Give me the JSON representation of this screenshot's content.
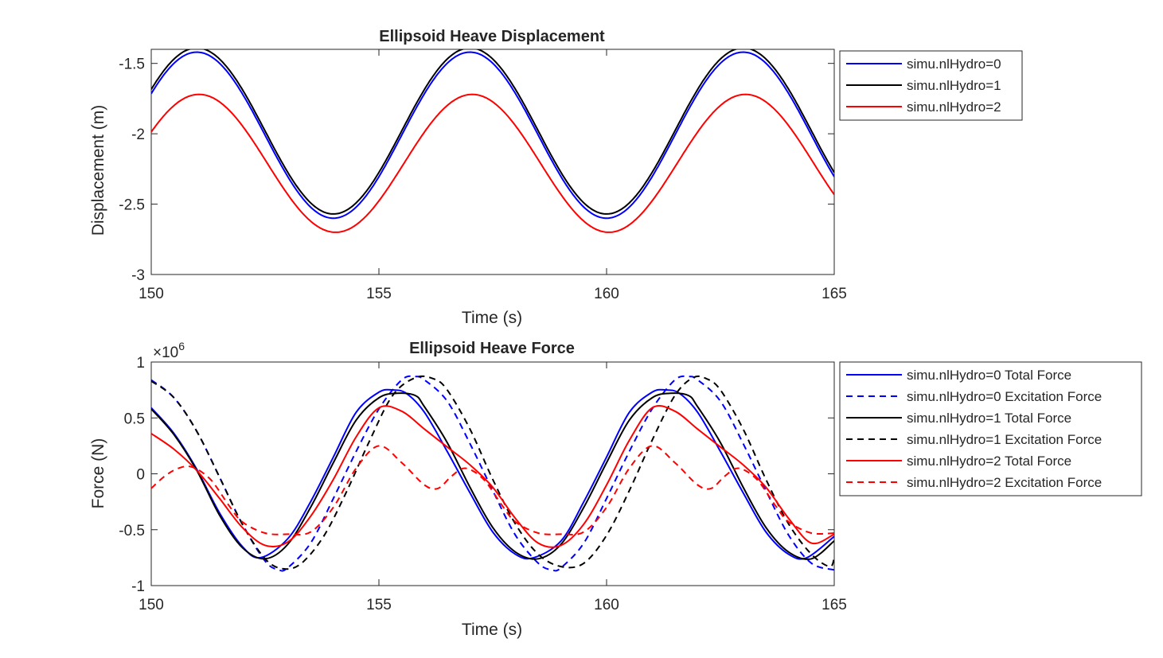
{
  "chart_data": [
    {
      "type": "line",
      "title": "Ellipsoid Heave Displacement",
      "xlabel": "Time (s)",
      "ylabel": "Displacement (m)",
      "xlim": [
        150,
        165
      ],
      "ylim": [
        -3,
        -1.4
      ],
      "xticks": [
        "150",
        "155",
        "160",
        "165"
      ],
      "yticks": [
        "-3",
        "-2.5",
        "-2",
        "-1.5"
      ],
      "grid": false,
      "legend_position": "outside-top-right",
      "series": [
        {
          "name": "simu.nlHydro=0",
          "color": "#0000ff",
          "dash": "solid",
          "period": 6.0,
          "peak_t": 151.0,
          "mean": -2.01,
          "amp": 0.59
        },
        {
          "name": "simu.nlHydro=1",
          "color": "#000000",
          "dash": "solid",
          "period": 6.0,
          "peak_t": 151.0,
          "mean": -1.98,
          "amp": 0.59
        },
        {
          "name": "simu.nlHydro=2",
          "color": "#ff0000",
          "dash": "solid",
          "period": 6.0,
          "peak_t": 151.05,
          "mean": -2.21,
          "amp": 0.49
        }
      ]
    },
    {
      "type": "line",
      "title": "Ellipsoid Heave Force",
      "xlabel": "Time (s)",
      "ylabel": "Force (N)",
      "y_multiplier": "×10",
      "y_multiplier_exp": "6",
      "xlim": [
        150,
        165
      ],
      "ylim": [
        -1,
        1
      ],
      "xticks": [
        "150",
        "155",
        "160",
        "165"
      ],
      "yticks": [
        "-1",
        "-0.5",
        "0",
        "0.5",
        "1"
      ],
      "grid": false,
      "legend_position": "outside-top-right",
      "series": [
        {
          "name": "simu.nlHydro=0 Total Force",
          "color": "#0000ff",
          "dash": "solid",
          "x": [
            150,
            150.5,
            151,
            151.5,
            152,
            152.4,
            153,
            153.5,
            154,
            154.5,
            155,
            155.3,
            155.6,
            156,
            156.5,
            157,
            157.5,
            158,
            158.4,
            159,
            159.5,
            160,
            160.5,
            161,
            161.3,
            161.6,
            162,
            162.5,
            163,
            163.5,
            164,
            164.4,
            165
          ],
          "y": [
            0.59,
            0.36,
            0.04,
            -0.35,
            -0.65,
            -0.75,
            -0.58,
            -0.25,
            0.15,
            0.55,
            0.73,
            0.75,
            0.72,
            0.55,
            0.2,
            -0.17,
            -0.52,
            -0.72,
            -0.75,
            -0.6,
            -0.25,
            0.15,
            0.55,
            0.73,
            0.75,
            0.72,
            0.55,
            0.2,
            -0.17,
            -0.52,
            -0.72,
            -0.75,
            -0.56
          ]
        },
        {
          "name": "simu.nlHydro=0 Excitation Force",
          "color": "#0000ff",
          "dash": "dashed",
          "x": [
            150,
            150.5,
            151,
            151.5,
            152,
            152.5,
            152.8,
            153,
            153.5,
            154,
            154.5,
            155,
            155.5,
            155.8,
            156,
            156.5,
            157,
            157.5,
            158,
            158.5,
            158.8,
            159,
            159.5,
            160,
            160.5,
            161,
            161.5,
            161.8,
            162,
            162.5,
            163,
            163.5,
            164,
            164.5,
            165
          ],
          "y": [
            0.84,
            0.68,
            0.38,
            -0.03,
            -0.45,
            -0.78,
            -0.86,
            -0.84,
            -0.62,
            -0.22,
            0.2,
            0.58,
            0.84,
            0.87,
            0.84,
            0.65,
            0.27,
            -0.15,
            -0.55,
            -0.8,
            -0.86,
            -0.84,
            -0.62,
            -0.22,
            0.2,
            0.58,
            0.84,
            0.87,
            0.84,
            0.65,
            0.27,
            -0.15,
            -0.55,
            -0.8,
            -0.86
          ]
        },
        {
          "name": "simu.nlHydro=1 Total Force",
          "color": "#000000",
          "dash": "solid",
          "x": [
            150,
            150.5,
            151,
            151.5,
            152,
            152.5,
            153,
            153.5,
            154,
            154.5,
            155,
            155.4,
            155.8,
            156,
            156.5,
            157,
            157.5,
            158,
            158.5,
            159,
            159.5,
            160,
            160.5,
            161,
            161.4,
            161.8,
            162,
            162.5,
            163,
            163.5,
            164,
            164.5,
            165
          ],
          "y": [
            0.58,
            0.35,
            0.03,
            -0.37,
            -0.66,
            -0.76,
            -0.63,
            -0.3,
            0.1,
            0.48,
            0.68,
            0.72,
            0.7,
            0.6,
            0.28,
            -0.12,
            -0.48,
            -0.7,
            -0.76,
            -0.63,
            -0.3,
            0.1,
            0.48,
            0.68,
            0.72,
            0.7,
            0.6,
            0.28,
            -0.12,
            -0.48,
            -0.7,
            -0.76,
            -0.6
          ]
        },
        {
          "name": "simu.nlHydro=1 Excitation Force",
          "color": "#000000",
          "dash": "dashed",
          "x": [
            150,
            150.5,
            151,
            151.5,
            152,
            152.5,
            152.9,
            153.3,
            153.8,
            154.3,
            154.8,
            155.3,
            155.8,
            156.2,
            156.5,
            157,
            157.5,
            158,
            158.5,
            159,
            159.5,
            160,
            160.5,
            161,
            161.5,
            161.9,
            162.2,
            162.5,
            163,
            163.5,
            164,
            164.5,
            164.9,
            165
          ],
          "y": [
            0.83,
            0.68,
            0.38,
            -0.03,
            -0.45,
            -0.76,
            -0.85,
            -0.8,
            -0.55,
            -0.15,
            0.3,
            0.7,
            0.86,
            0.85,
            0.75,
            0.4,
            -0.05,
            -0.45,
            -0.72,
            -0.83,
            -0.8,
            -0.55,
            -0.15,
            0.3,
            0.7,
            0.86,
            0.85,
            0.75,
            0.4,
            -0.05,
            -0.45,
            -0.72,
            -0.83,
            -0.75
          ]
        },
        {
          "name": "simu.nlHydro=2 Total Force",
          "color": "#ff0000",
          "dash": "solid",
          "x": [
            150,
            150.5,
            151,
            151.5,
            152,
            152.5,
            153,
            153.5,
            154,
            154.5,
            155,
            155.5,
            156,
            156.5,
            157,
            157.5,
            158,
            158.5,
            159,
            159.5,
            160,
            160.5,
            161,
            161.5,
            162,
            162.5,
            163,
            163.5,
            164,
            164.5,
            165
          ],
          "y": [
            0.36,
            0.22,
            0.03,
            -0.22,
            -0.48,
            -0.64,
            -0.61,
            -0.38,
            -0.05,
            0.33,
            0.59,
            0.56,
            0.4,
            0.24,
            0.08,
            -0.12,
            -0.4,
            -0.62,
            -0.64,
            -0.45,
            -0.1,
            0.3,
            0.59,
            0.56,
            0.4,
            0.24,
            0.08,
            -0.12,
            -0.4,
            -0.62,
            -0.54
          ]
        },
        {
          "name": "simu.nlHydro=2 Excitation Force",
          "color": "#ff0000",
          "dash": "dashed",
          "x": [
            150,
            150.3,
            150.6,
            150.9,
            151.3,
            151.7,
            152,
            152.5,
            153,
            153.5,
            154,
            154.5,
            155,
            155.5,
            156,
            156.3,
            156.6,
            156.9,
            157.3,
            157.7,
            158,
            158.5,
            159,
            159.5,
            160,
            160.5,
            161,
            161.5,
            162,
            162.3,
            162.6,
            162.9,
            163.3,
            163.7,
            164,
            164.5,
            165
          ],
          "y": [
            -0.13,
            -0.02,
            0.05,
            0.06,
            -0.05,
            -0.28,
            -0.43,
            -0.53,
            -0.54,
            -0.52,
            -0.3,
            0.05,
            0.25,
            0.1,
            -0.1,
            -0.13,
            -0.02,
            0.05,
            -0.05,
            -0.28,
            -0.43,
            -0.53,
            -0.54,
            -0.52,
            -0.3,
            0.05,
            0.25,
            0.1,
            -0.1,
            -0.13,
            -0.02,
            0.05,
            -0.05,
            -0.28,
            -0.43,
            -0.53,
            -0.53
          ]
        }
      ]
    }
  ]
}
